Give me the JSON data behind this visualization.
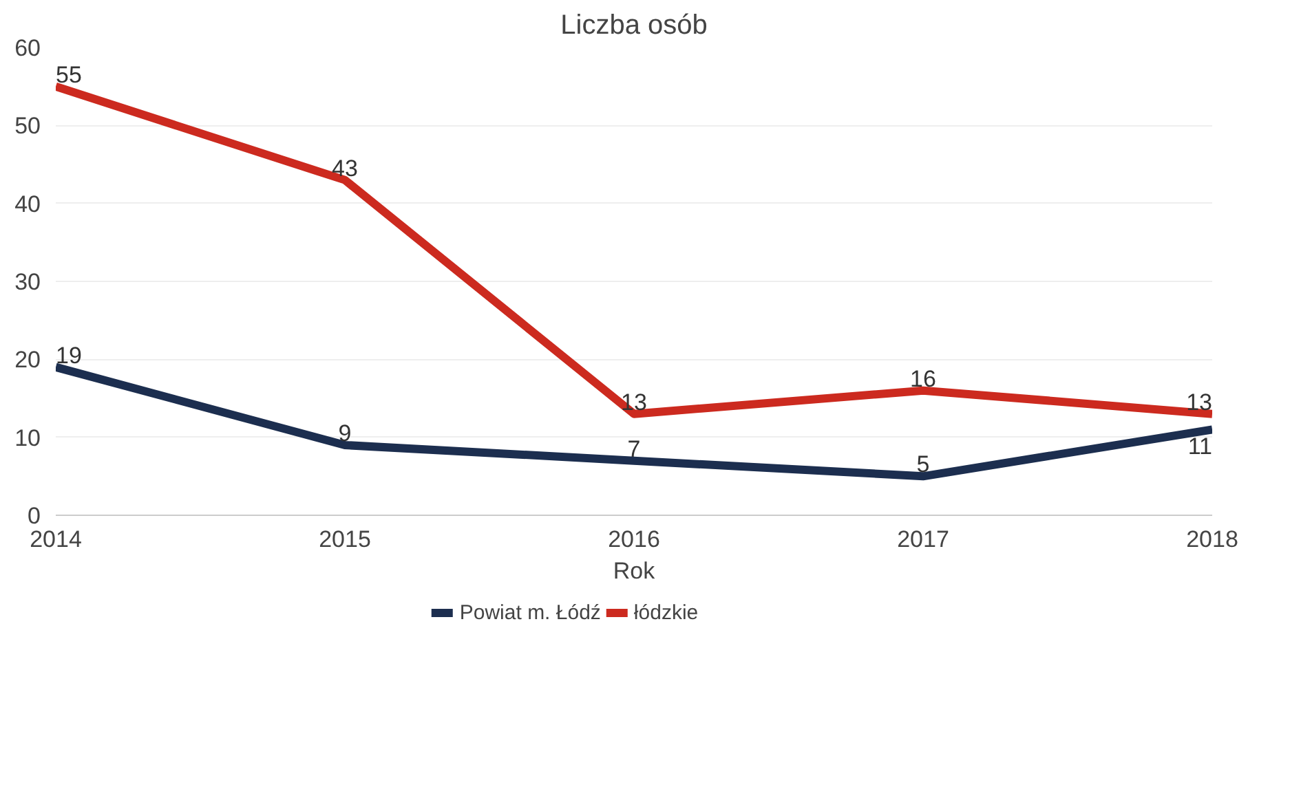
{
  "chart_data": {
    "type": "line",
    "title": "Liczba osób",
    "xlabel": "Rok",
    "x": [
      2014,
      2015,
      2016,
      2017,
      2018
    ],
    "series": [
      {
        "name": "Powiat m. Łódź",
        "color": "#1c2e4f",
        "values": [
          19,
          9,
          7,
          5,
          11
        ]
      },
      {
        "name": "łódzkie",
        "color": "#cc2a1f",
        "values": [
          55,
          43,
          13,
          16,
          13
        ]
      }
    ],
    "xlim": [
      2014,
      2018
    ],
    "xticks": [
      2014,
      2015,
      2016,
      2017,
      2018
    ],
    "ylim": [
      0,
      60
    ],
    "yticks": [
      0,
      10,
      20,
      30,
      40,
      50,
      60
    ],
    "grid": "y",
    "legend": "bottom",
    "data_labels": true,
    "marker": "none",
    "line_style": "solid"
  }
}
